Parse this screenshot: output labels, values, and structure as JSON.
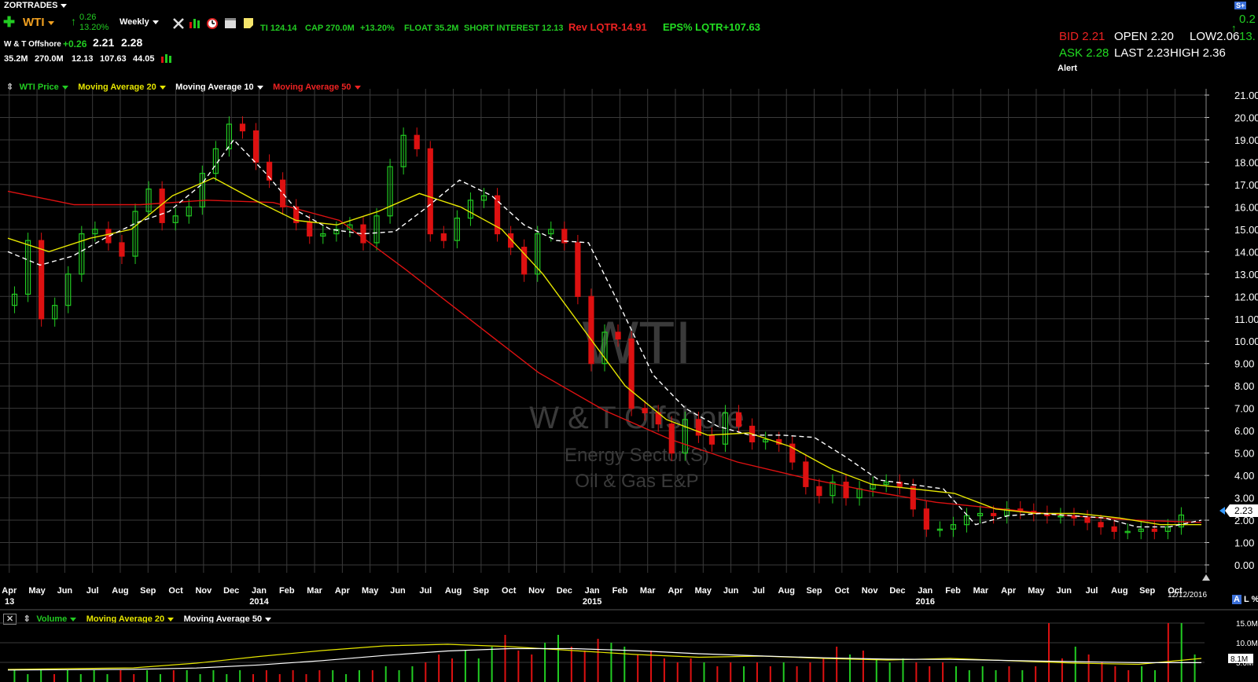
{
  "account": {
    "label": "ZORTRADES"
  },
  "quote_bar": {
    "symbol": "WTI",
    "change": "0.26",
    "change_pct": "13.20%",
    "interval": "Weekly",
    "name": "W & T Offshore",
    "name_change": "+0.26",
    "bid": "2.21",
    "ask": "2.28",
    "stats_line": [
      "35.2M",
      "270.0M",
      "12.13",
      "107.63",
      "44.05"
    ]
  },
  "fundamentals": {
    "ti": "TI 124.14",
    "cap": "CAP 270.0M",
    "pct": "+13.20%",
    "float": "FLOAT 35.2M",
    "short_interest": "SHORT INTEREST 12.13",
    "rev": "Rev LQTR-14.91",
    "eps": "EPS% LQTR+107.63"
  },
  "level1": {
    "bid_label": "BID",
    "bid": "2.21",
    "open_label": "OPEN",
    "open": "2.20",
    "low_label": "LOW",
    "low": "2.06",
    "ask_label": "ASK",
    "ask": "2.28",
    "last_label": "LAST",
    "last": "2.23",
    "high_label": "HIGH",
    "high": "2.36",
    "cut_change": "0.2",
    "cut_pct": "13.",
    "alert": "Alert"
  },
  "legend": {
    "price": "WTI Price",
    "ma20": "Moving Average 20",
    "ma10": "Moving Average 10",
    "ma50": "Moving Average 50"
  },
  "watermark": {
    "symbol": "WTI",
    "company": "W & T Offshore",
    "sector": "Energy Sector(S)",
    "industry": "Oil & Gas E&P"
  },
  "volume_legend": {
    "volume": "Volume",
    "ma20": "Moving Average 20",
    "ma50": "Moving Average 50"
  },
  "last_price_tag": "2.23",
  "date_stamp": "12/12/2016",
  "volume_tag": "8.1M",
  "volume_axis": [
    "15.0M",
    "10.0M",
    "5.0M"
  ],
  "right_top_badge": "S+",
  "right_panel_letters": [
    "A",
    "L",
    "%"
  ],
  "colors": {
    "up": "#22cc22",
    "down": "#dd1111",
    "ma20": "#e6e600",
    "ma10": "#ffffff",
    "ma50": "#dd1111",
    "grid": "#3a3a3a"
  },
  "chart_data": {
    "type": "candlestick",
    "interval": "weekly",
    "ylim": [
      0,
      21
    ],
    "y_ticks": [
      "21.00",
      "20.00",
      "19.00",
      "18.00",
      "17.00",
      "16.00",
      "15.00",
      "14.00",
      "13.00",
      "12.00",
      "11.00",
      "10.00",
      "9.00",
      "8.00",
      "7.00",
      "6.00",
      "5.00",
      "4.00",
      "3.00",
      "2.00",
      "1.00",
      "0.00"
    ],
    "x_month_labels": [
      "Apr",
      "May",
      "Jun",
      "Jul",
      "Aug",
      "Sep",
      "Oct",
      "Nov",
      "Dec",
      "Jan",
      "Feb",
      "Mar",
      "Apr",
      "May",
      "Jun",
      "Jul",
      "Aug",
      "Sep",
      "Oct",
      "Nov",
      "Dec",
      "Jan",
      "Feb",
      "Mar",
      "Apr",
      "May",
      "Jun",
      "Jul",
      "Aug",
      "Sep",
      "Oct",
      "Nov",
      "Dec",
      "Jan",
      "Feb",
      "Mar",
      "Apr",
      "May",
      "Jun",
      "Jul",
      "Aug",
      "Sep",
      "Oct"
    ],
    "x_year_labels": [
      "13",
      "2014",
      "2015",
      "2016"
    ],
    "close_series": [
      12.1,
      14.5,
      11.0,
      11.6,
      13.0,
      14.8,
      15.0,
      14.4,
      13.8,
      15.8,
      16.8,
      15.3,
      15.6,
      16.0,
      17.5,
      18.6,
      19.7,
      19.4,
      18.0,
      17.2,
      16.0,
      15.3,
      14.7,
      14.8,
      15.0,
      15.2,
      14.4,
      15.6,
      17.8,
      19.2,
      18.6,
      14.8,
      14.5,
      15.5,
      16.3,
      16.5,
      14.8,
      14.2,
      13.0,
      14.8,
      15.0,
      14.4,
      12.0,
      9.0,
      10.4,
      10.1,
      7.0,
      6.8,
      6.3,
      5.0,
      6.5,
      5.8,
      5.4,
      6.8,
      6.2,
      5.5,
      5.6,
      5.4,
      4.6,
      3.5,
      3.1,
      3.7,
      3.0,
      3.4,
      3.6,
      3.7,
      3.5,
      2.5,
      1.6,
      1.6,
      1.8,
      2.2,
      2.3,
      2.2,
      2.5,
      2.4,
      2.3,
      2.2,
      2.2,
      2.1,
      1.9,
      1.7,
      1.5,
      1.5,
      1.6,
      1.5,
      1.7,
      2.23
    ],
    "ma10_series": [
      14.0,
      13.4,
      13.8,
      14.6,
      15.3,
      15.8,
      17.0,
      19.0,
      17.5,
      15.8,
      15.0,
      14.8,
      14.9,
      16.0,
      17.2,
      16.5,
      15.2,
      14.5,
      14.4,
      11.5,
      8.5,
      7.0,
      6.2,
      5.8,
      5.8,
      5.7,
      4.8,
      3.8,
      3.6,
      3.4,
      1.8,
      2.2,
      2.3,
      2.2,
      2.1,
      1.7,
      1.7,
      2.0
    ],
    "ma20_series": [
      14.6,
      14.0,
      14.6,
      15.0,
      16.5,
      17.3,
      16.3,
      15.4,
      15.2,
      15.8,
      16.6,
      16.0,
      15.0,
      13.0,
      10.5,
      8.0,
      6.5,
      5.8,
      5.9,
      5.3,
      4.3,
      3.6,
      3.4,
      3.2,
      2.5,
      2.3,
      2.3,
      2.1,
      1.8,
      1.8
    ],
    "ma50_series": [
      16.7,
      16.1,
      16.1,
      16.3,
      16.2,
      15.4,
      13.2,
      10.9,
      8.6,
      6.9,
      5.6,
      4.6,
      3.9,
      3.3,
      2.8,
      2.5,
      2.2,
      2.0,
      1.9
    ],
    "volume_ylim": [
      0,
      15
    ],
    "volume_series": [
      3,
      2,
      3,
      2,
      3,
      2,
      3,
      2,
      3,
      2,
      3,
      2,
      3,
      3,
      2,
      3,
      2,
      3,
      2,
      3,
      2,
      3,
      2,
      3,
      3,
      2,
      3,
      3,
      4,
      3,
      4,
      5,
      7,
      6,
      8,
      6,
      9,
      12,
      8,
      7,
      10,
      12,
      9,
      8,
      11,
      10,
      9,
      7,
      8,
      6,
      5,
      6,
      5,
      4,
      5,
      4,
      5,
      4,
      5,
      4,
      5,
      6,
      9,
      7,
      8,
      6,
      5,
      6,
      5,
      4,
      5,
      4,
      3,
      4,
      3,
      4,
      3,
      4,
      15,
      6,
      9,
      7,
      5,
      4,
      3,
      4,
      3,
      15,
      15,
      7
    ],
    "volume_ma20_series": [
      3.2,
      3.4,
      3.6,
      4.8,
      6.5,
      8.0,
      9.2,
      9.6,
      9.0,
      8.0,
      7.0,
      6.3,
      6.6,
      6.0,
      5.6,
      6.0,
      5.4,
      4.8,
      4.5,
      6.0
    ]
  }
}
